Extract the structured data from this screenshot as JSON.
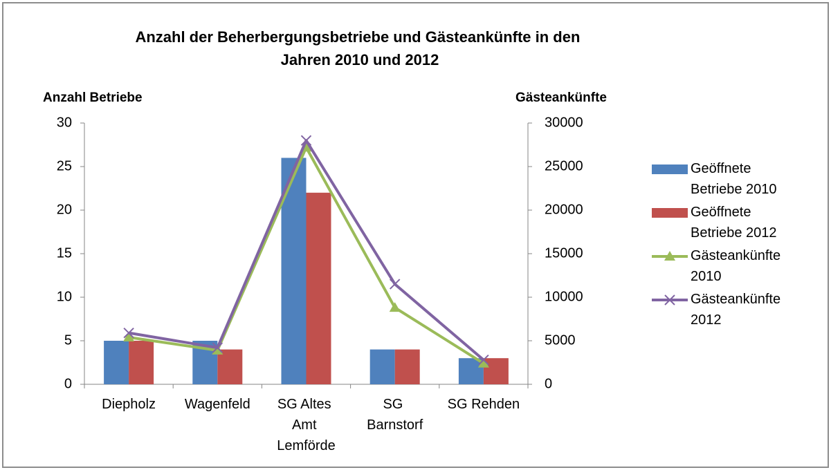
{
  "chart_data": {
    "type": "bar_line",
    "title": "Anzahl der Beherbergungsbetriebe und Gästeankünfte in den Jahren 2010 und 2012",
    "y_label": "Anzahl Betriebe",
    "y2_label": "Gästeankünfte",
    "categories": [
      "Diepholz",
      "Wagenfeld",
      "SG Altes Amt Lemförde",
      "SG Barnstorf",
      "SG Rehden"
    ],
    "series": [
      {
        "name": "Geöffnete Betriebe 2010",
        "type": "bar",
        "color": "#4f81bd",
        "values": [
          5,
          5,
          26,
          4,
          3
        ]
      },
      {
        "name": "Geöffnete Betriebe 2012",
        "type": "bar",
        "color": "#c0504d",
        "values": [
          5,
          4,
          22,
          4,
          3
        ]
      },
      {
        "name": "Gästeankünfte 2010",
        "type": "line",
        "marker": "triangle",
        "axis": "y2",
        "color": "#9bbb59",
        "values": [
          5400,
          3900,
          27200,
          8800,
          2400
        ]
      },
      {
        "name": "Gästeankünfte 2012",
        "type": "line",
        "marker": "x",
        "axis": "y2",
        "color": "#8064a2",
        "values": [
          5900,
          4200,
          28000,
          11500,
          2800
        ]
      }
    ],
    "ylim": [
      0,
      30
    ],
    "yticks": [
      0,
      5,
      10,
      15,
      20,
      25,
      30
    ],
    "y2lim": [
      0,
      30000
    ],
    "y2ticks": [
      0,
      5000,
      10000,
      15000,
      20000,
      25000,
      30000
    ],
    "legend": "right"
  }
}
